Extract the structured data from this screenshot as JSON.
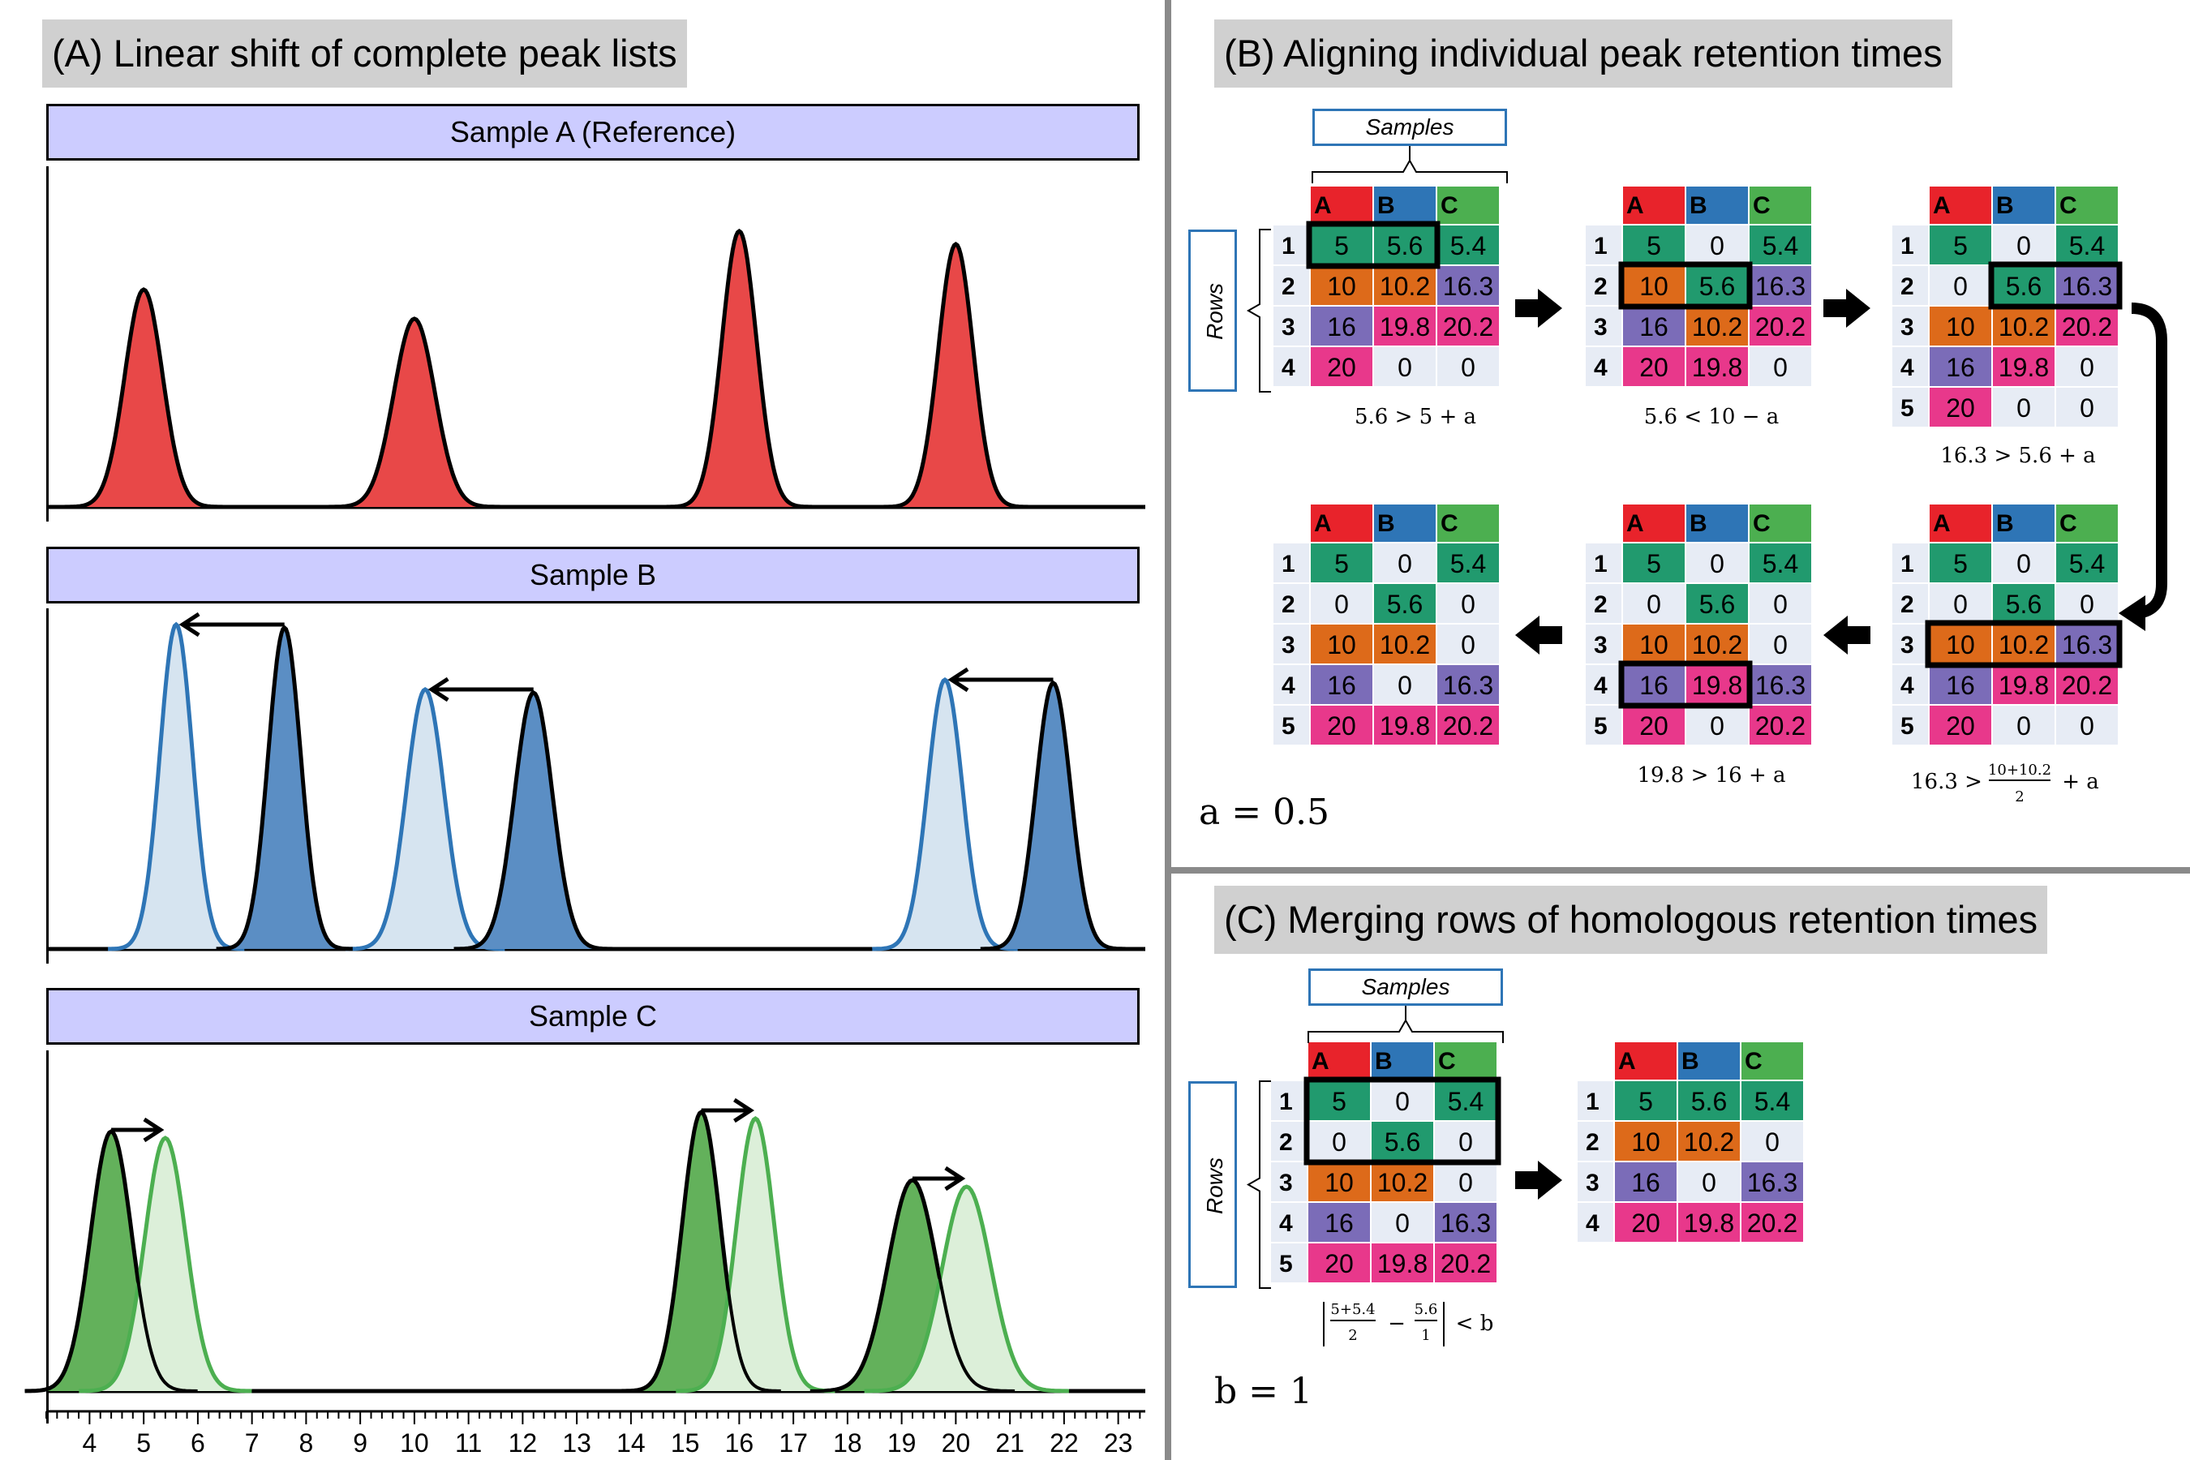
{
  "panel_a": {
    "title": "(A) Linear shift of complete peak lists",
    "samples": [
      "Sample A (Reference)",
      "Sample B",
      "Sample C"
    ],
    "colors": {
      "red_fill": "#e84848",
      "blue_dark": "#5b8ec4",
      "blue_light": "#d6e4f0",
      "blue_line": "#2e75b6",
      "green_dark": "#63b15b",
      "green_light": "#dcefd9",
      "green_line": "#4caf50"
    }
  },
  "chart_data": {
    "type": "line",
    "title": "(A) Linear shift of complete peak lists",
    "xlabel": "",
    "ylabel": "",
    "xlim": [
      3.2,
      23.5
    ],
    "x_ticks": [
      4,
      5,
      6,
      7,
      8,
      9,
      10,
      11,
      12,
      13,
      14,
      15,
      16,
      17,
      18,
      19,
      20,
      21,
      22,
      23
    ],
    "series": [
      {
        "name": "Sample A (Reference)",
        "peaks": [
          {
            "x": 5.0,
            "height": 0.67,
            "width": 0.35
          },
          {
            "x": 10.0,
            "height": 0.58,
            "width": 0.38
          },
          {
            "x": 16.0,
            "height": 0.85,
            "width": 0.32
          },
          {
            "x": 20.0,
            "height": 0.81,
            "width": 0.32
          }
        ]
      },
      {
        "name": "Sample B",
        "peaks": [
          {
            "x": 7.6,
            "height": 0.99,
            "width": 0.3
          },
          {
            "x": 12.2,
            "height": 0.79,
            "width": 0.35
          },
          {
            "x": 21.8,
            "height": 0.82,
            "width": 0.32
          }
        ]
      },
      {
        "name": "Sample B (shifted)",
        "peaks": [
          {
            "x": 5.6,
            "height": 1.0,
            "width": 0.3
          },
          {
            "x": 10.2,
            "height": 0.8,
            "width": 0.35
          },
          {
            "x": 19.8,
            "height": 0.83,
            "width": 0.32
          }
        ]
      },
      {
        "name": "Sample C",
        "peaks": [
          {
            "x": 4.4,
            "height": 0.8,
            "width": 0.38
          },
          {
            "x": 15.3,
            "height": 0.86,
            "width": 0.35
          },
          {
            "x": 19.2,
            "height": 0.65,
            "width": 0.45
          }
        ]
      },
      {
        "name": "Sample C (shifted)",
        "peaks": [
          {
            "x": 5.4,
            "height": 0.78,
            "width": 0.38
          },
          {
            "x": 16.3,
            "height": 0.84,
            "width": 0.35
          },
          {
            "x": 20.2,
            "height": 0.63,
            "width": 0.45
          }
        ]
      }
    ]
  },
  "panel_b": {
    "title": "(B) Aligning individual peak retention times",
    "samples_label": "Samples",
    "rows_label": "Rows",
    "col_headers": [
      "A",
      "B",
      "C"
    ],
    "col_colors": [
      "#e8232b",
      "#2e75b6",
      "#4caf50"
    ],
    "tables": [
      {
        "rows": [
          [
            "5",
            "5.6",
            "5.4"
          ],
          [
            "10",
            "10.2",
            "16.3"
          ],
          [
            "16",
            "19.8",
            "20.2"
          ],
          [
            "20",
            "0",
            "0"
          ]
        ],
        "colors": [
          [
            "g",
            "g",
            "g"
          ],
          [
            "o",
            "o",
            "p"
          ],
          [
            "p",
            "m",
            "m"
          ],
          [
            "m",
            "w",
            "w"
          ]
        ],
        "highlight": {
          "row": 0,
          "col_start": 0,
          "col_end": 1
        },
        "condition": "5.6 > 5 + a"
      },
      {
        "rows": [
          [
            "5",
            "0",
            "5.4"
          ],
          [
            "10",
            "5.6",
            "16.3"
          ],
          [
            "16",
            "10.2",
            "20.2"
          ],
          [
            "20",
            "19.8",
            "0"
          ]
        ],
        "colors": [
          [
            "g",
            "w",
            "g"
          ],
          [
            "o",
            "g",
            "p"
          ],
          [
            "p",
            "o",
            "m"
          ],
          [
            "m",
            "m",
            "w"
          ]
        ],
        "highlight": {
          "row": 1,
          "col_start": 0,
          "col_end": 1
        },
        "condition": "5.6 < 10 − a"
      },
      {
        "rows": [
          [
            "5",
            "0",
            "5.4"
          ],
          [
            "0",
            "5.6",
            "16.3"
          ],
          [
            "10",
            "10.2",
            "20.2"
          ],
          [
            "16",
            "19.8",
            "0"
          ],
          [
            "20",
            "0",
            "0"
          ]
        ],
        "colors": [
          [
            "g",
            "w",
            "g"
          ],
          [
            "w",
            "g",
            "p"
          ],
          [
            "o",
            "o",
            "m"
          ],
          [
            "p",
            "m",
            "w"
          ],
          [
            "m",
            "w",
            "w"
          ]
        ],
        "highlight": {
          "row": 1,
          "col_start": 1,
          "col_end": 2
        },
        "condition": "16.3 > 5.6 + a"
      },
      {
        "rows": [
          [
            "5",
            "0",
            "5.4"
          ],
          [
            "0",
            "5.6",
            "0"
          ],
          [
            "10",
            "10.2",
            "16.3"
          ],
          [
            "16",
            "19.8",
            "20.2"
          ],
          [
            "20",
            "0",
            "0"
          ]
        ],
        "colors": [
          [
            "g",
            "w",
            "g"
          ],
          [
            "w",
            "g",
            "w"
          ],
          [
            "o",
            "o",
            "p"
          ],
          [
            "p",
            "m",
            "m"
          ],
          [
            "m",
            "w",
            "w"
          ]
        ],
        "highlight": {
          "row": 2,
          "col_start": 0,
          "col_end": 2
        },
        "condition_prefix": "16.3 >",
        "condition_num": "10+10.2",
        "condition_den": "2",
        "condition_suffix": "+ a"
      },
      {
        "rows": [
          [
            "5",
            "0",
            "5.4"
          ],
          [
            "0",
            "5.6",
            "0"
          ],
          [
            "10",
            "10.2",
            "0"
          ],
          [
            "16",
            "19.8",
            "16.3"
          ],
          [
            "20",
            "0",
            "20.2"
          ]
        ],
        "colors": [
          [
            "g",
            "w",
            "g"
          ],
          [
            "w",
            "g",
            "w"
          ],
          [
            "o",
            "o",
            "w"
          ],
          [
            "p",
            "m",
            "p"
          ],
          [
            "m",
            "w",
            "m"
          ]
        ],
        "highlight": {
          "row": 3,
          "col_start": 0,
          "col_end": 1
        },
        "condition": "19.8 > 16 + a"
      },
      {
        "rows": [
          [
            "5",
            "0",
            "5.4"
          ],
          [
            "0",
            "5.6",
            "0"
          ],
          [
            "10",
            "10.2",
            "0"
          ],
          [
            "16",
            "0",
            "16.3"
          ],
          [
            "20",
            "19.8",
            "20.2"
          ]
        ],
        "colors": [
          [
            "g",
            "w",
            "g"
          ],
          [
            "w",
            "g",
            "w"
          ],
          [
            "o",
            "o",
            "w"
          ],
          [
            "p",
            "w",
            "p"
          ],
          [
            "m",
            "m",
            "m"
          ]
        ],
        "highlight": null,
        "condition": ""
      }
    ],
    "param": "a = 0.5"
  },
  "panel_c": {
    "title": "(C) Merging rows of homologous retention times",
    "samples_label": "Samples",
    "rows_label": "Rows",
    "tables": [
      {
        "rows": [
          [
            "5",
            "0",
            "5.4"
          ],
          [
            "0",
            "5.6",
            "0"
          ],
          [
            "10",
            "10.2",
            "0"
          ],
          [
            "16",
            "0",
            "16.3"
          ],
          [
            "20",
            "19.8",
            "20.2"
          ]
        ],
        "colors": [
          [
            "g",
            "w",
            "g"
          ],
          [
            "w",
            "g",
            "w"
          ],
          [
            "o",
            "o",
            "w"
          ],
          [
            "p",
            "w",
            "p"
          ],
          [
            "m",
            "m",
            "m"
          ]
        ],
        "highlight": {
          "row": 0,
          "row_end": 1,
          "col_start": 0,
          "col_end": 2
        }
      },
      {
        "rows": [
          [
            "5",
            "5.6",
            "5.4"
          ],
          [
            "10",
            "10.2",
            "0"
          ],
          [
            "16",
            "0",
            "16.3"
          ],
          [
            "20",
            "19.8",
            "20.2"
          ]
        ],
        "colors": [
          [
            "g",
            "g",
            "g"
          ],
          [
            "o",
            "o",
            "w"
          ],
          [
            "p",
            "w",
            "p"
          ],
          [
            "m",
            "m",
            "m"
          ]
        ],
        "highlight": null
      }
    ],
    "condition_num1": "5+5.4",
    "condition_den1": "2",
    "condition_num2": "5.6",
    "condition_den2": "1",
    "condition_tail": "< b",
    "param": "b = 1"
  },
  "cell_colors": {
    "g": "#219a6e",
    "o": "#dd6a1a",
    "p": "#7b6cb8",
    "m": "#e8388b",
    "w": "#e7ecf5"
  }
}
